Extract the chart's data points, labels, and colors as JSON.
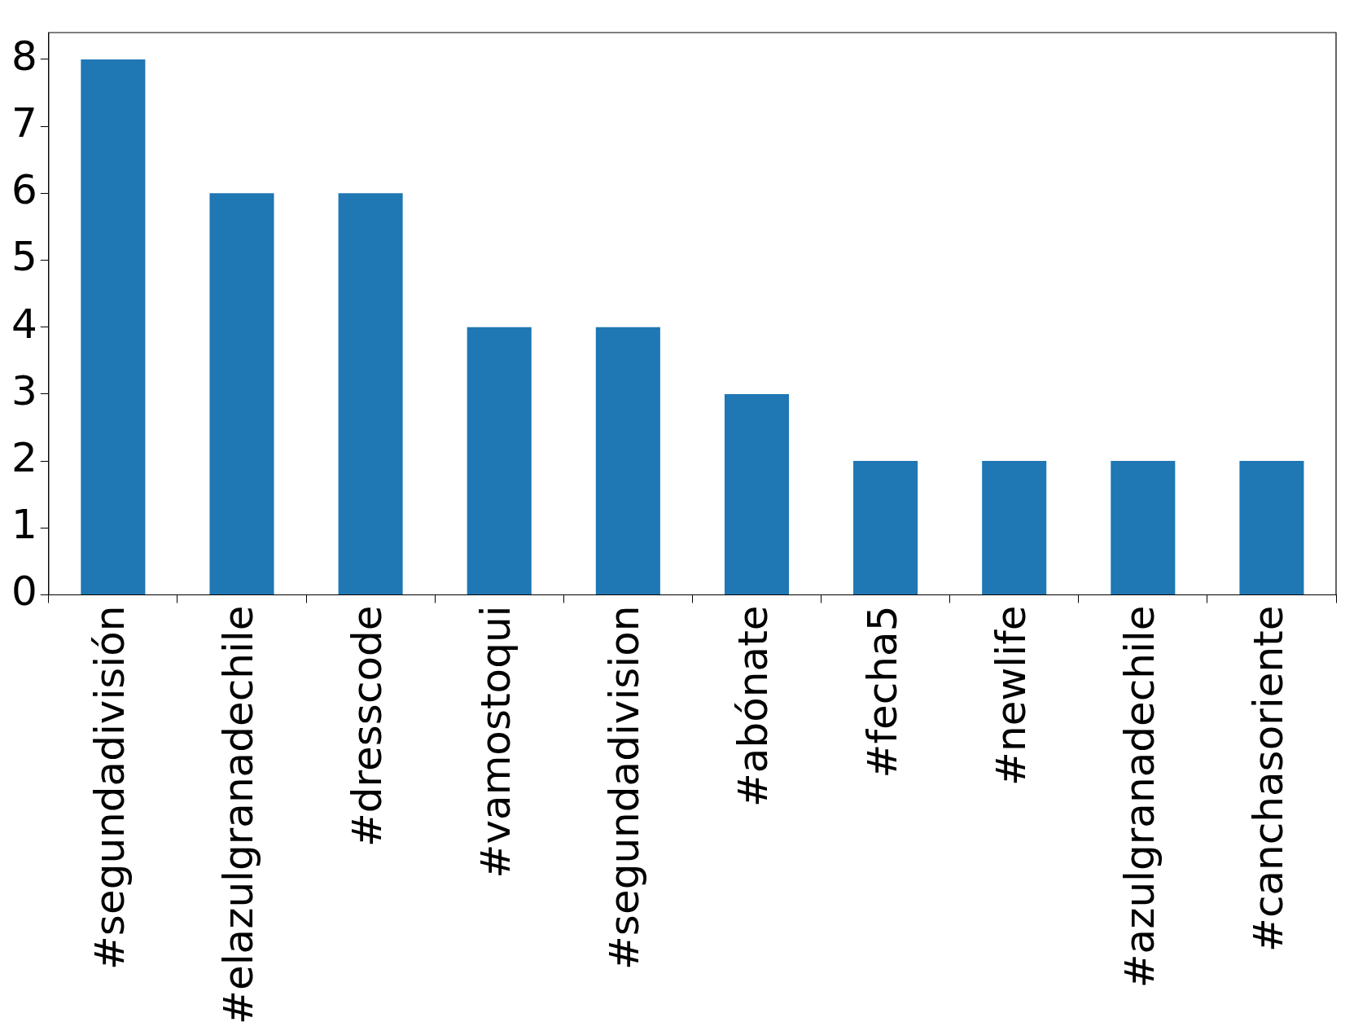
{
  "chart_data": {
    "type": "bar",
    "categories": [
      "#segundadivisión",
      "#elazulgranadechile",
      "#dresscode",
      "#vamostoqui",
      "#segundadivision",
      "#abónate",
      "#fecha5",
      "#newlife",
      "#azulgranadechile",
      "#canchasoriente"
    ],
    "values": [
      8,
      6,
      6,
      4,
      4,
      3,
      2,
      2,
      2,
      2
    ],
    "color": "#1f77b4",
    "ylim": [
      0,
      8.4
    ],
    "yticks": [
      0,
      1,
      2,
      3,
      4,
      5,
      6,
      7,
      8
    ],
    "legend": false
  }
}
